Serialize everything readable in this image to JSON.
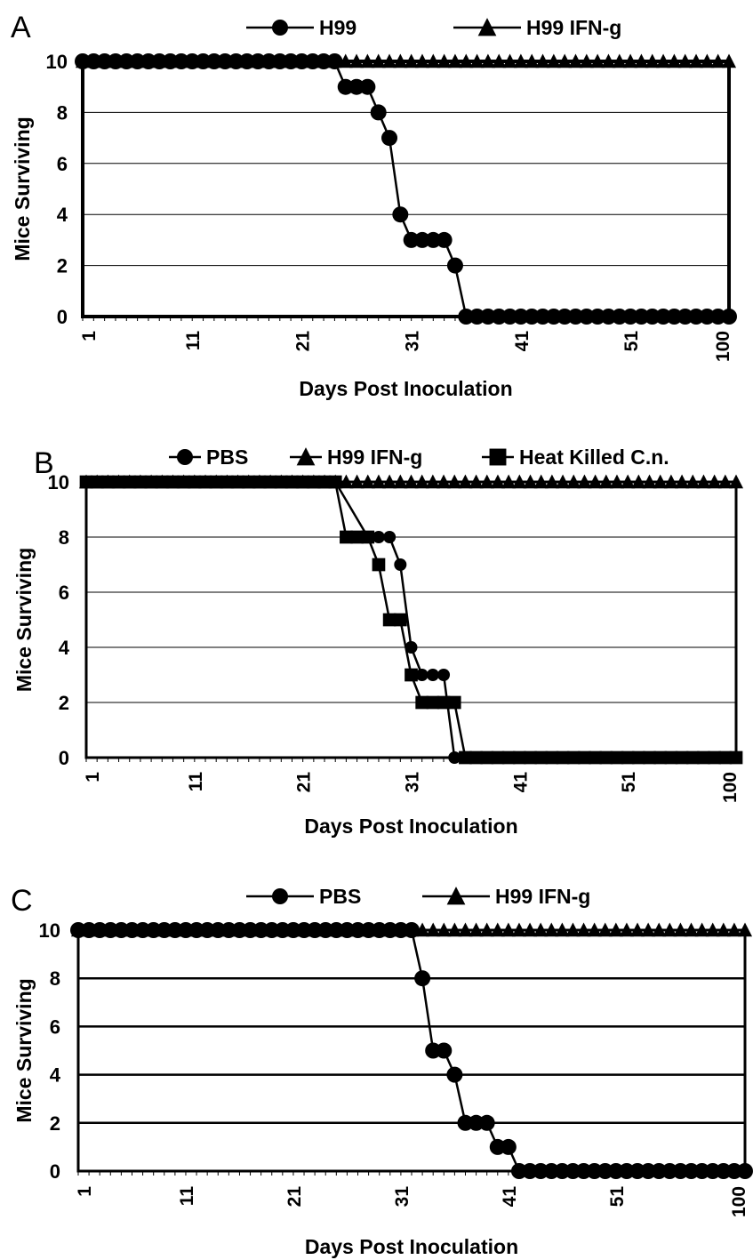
{
  "chart_data": [
    {
      "panel": "A",
      "type": "line",
      "xlabel": "Days Post Inoculation",
      "ylabel": "Mice Surviving",
      "x_tick_labels": [
        "1",
        "11",
        "21",
        "31",
        "41",
        "51",
        "100"
      ],
      "y_tick_labels": [
        "0",
        "2",
        "4",
        "6",
        "8",
        "10"
      ],
      "ylim": [
        0,
        10
      ],
      "grid": "horizontal",
      "legend_position": "top",
      "series": [
        {
          "name": "H99",
          "marker": "circle",
          "points": [
            [
              1,
              10
            ],
            [
              2,
              10
            ],
            [
              3,
              10
            ],
            [
              4,
              10
            ],
            [
              5,
              10
            ],
            [
              6,
              10
            ],
            [
              7,
              10
            ],
            [
              8,
              10
            ],
            [
              9,
              10
            ],
            [
              10,
              10
            ],
            [
              11,
              10
            ],
            [
              12,
              10
            ],
            [
              13,
              10
            ],
            [
              14,
              10
            ],
            [
              15,
              10
            ],
            [
              16,
              10
            ],
            [
              17,
              10
            ],
            [
              18,
              10
            ],
            [
              19,
              10
            ],
            [
              20,
              10
            ],
            [
              21,
              10
            ],
            [
              22,
              10
            ],
            [
              23,
              10
            ],
            [
              24,
              10
            ],
            [
              25,
              9
            ],
            [
              26,
              9
            ],
            [
              27,
              9
            ],
            [
              28,
              8
            ],
            [
              29,
              7
            ],
            [
              30,
              4
            ],
            [
              31,
              3
            ],
            [
              32,
              3
            ],
            [
              33,
              3
            ],
            [
              34,
              3
            ],
            [
              35,
              2
            ],
            [
              36,
              0
            ],
            [
              37,
              0
            ],
            [
              38,
              0
            ],
            [
              39,
              0
            ],
            [
              40,
              0
            ],
            [
              41,
              0
            ],
            [
              42,
              0
            ],
            [
              43,
              0
            ],
            [
              44,
              0
            ],
            [
              45,
              0
            ],
            [
              46,
              0
            ],
            [
              47,
              0
            ],
            [
              48,
              0
            ],
            [
              49,
              0
            ],
            [
              50,
              0
            ],
            [
              51,
              0
            ],
            [
              52,
              0
            ],
            [
              53,
              0
            ],
            [
              54,
              0
            ],
            [
              55,
              0
            ],
            [
              56,
              0
            ],
            [
              57,
              0
            ],
            [
              58,
              0
            ],
            [
              59,
              0
            ],
            [
              100,
              0
            ]
          ]
        },
        {
          "name": "H99 IFN-g",
          "marker": "triangle",
          "constant": 10
        }
      ]
    },
    {
      "panel": "B",
      "type": "line",
      "xlabel": "Days Post Inoculation",
      "ylabel": "Mice Surviving",
      "x_tick_labels": [
        "1",
        "11",
        "21",
        "31",
        "41",
        "51",
        "100"
      ],
      "y_tick_labels": [
        "0",
        "2",
        "4",
        "6",
        "8",
        "10"
      ],
      "ylim": [
        0,
        10
      ],
      "grid": "horizontal",
      "legend_position": "top",
      "series": [
        {
          "name": "PBS",
          "marker": "circle",
          "points": [
            [
              1,
              10
            ],
            [
              24,
              10
            ],
            [
              27,
              8
            ],
            [
              28,
              8
            ],
            [
              29,
              8
            ],
            [
              30,
              7
            ],
            [
              31,
              4
            ],
            [
              32,
              3
            ],
            [
              33,
              3
            ],
            [
              34,
              3
            ],
            [
              35,
              0
            ],
            [
              100,
              0
            ]
          ]
        },
        {
          "name": "H99 IFN-g",
          "marker": "triangle",
          "constant": 10
        },
        {
          "name": "Heat Killed C.n.",
          "marker": "square",
          "points": [
            [
              1,
              10
            ],
            [
              2,
              10
            ],
            [
              3,
              10
            ],
            [
              4,
              10
            ],
            [
              5,
              10
            ],
            [
              6,
              10
            ],
            [
              7,
              10
            ],
            [
              8,
              10
            ],
            [
              9,
              10
            ],
            [
              10,
              10
            ],
            [
              11,
              10
            ],
            [
              12,
              10
            ],
            [
              13,
              10
            ],
            [
              14,
              10
            ],
            [
              15,
              10
            ],
            [
              16,
              10
            ],
            [
              17,
              10
            ],
            [
              18,
              10
            ],
            [
              19,
              10
            ],
            [
              20,
              10
            ],
            [
              21,
              10
            ],
            [
              22,
              10
            ],
            [
              23,
              10
            ],
            [
              24,
              10
            ],
            [
              25,
              8
            ],
            [
              26,
              8
            ],
            [
              27,
              8
            ],
            [
              28,
              7
            ],
            [
              29,
              5
            ],
            [
              30,
              5
            ],
            [
              31,
              3
            ],
            [
              32,
              2
            ],
            [
              33,
              2
            ],
            [
              34,
              2
            ],
            [
              35,
              2
            ],
            [
              36,
              0
            ],
            [
              37,
              0
            ],
            [
              38,
              0
            ],
            [
              39,
              0
            ],
            [
              40,
              0
            ],
            [
              41,
              0
            ],
            [
              42,
              0
            ],
            [
              43,
              0
            ],
            [
              44,
              0
            ],
            [
              45,
              0
            ],
            [
              46,
              0
            ],
            [
              47,
              0
            ],
            [
              48,
              0
            ],
            [
              49,
              0
            ],
            [
              50,
              0
            ],
            [
              51,
              0
            ],
            [
              52,
              0
            ],
            [
              53,
              0
            ],
            [
              54,
              0
            ],
            [
              55,
              0
            ],
            [
              56,
              0
            ],
            [
              57,
              0
            ],
            [
              58,
              0
            ],
            [
              59,
              0
            ],
            [
              60,
              0
            ],
            [
              100,
              0
            ]
          ]
        }
      ]
    },
    {
      "panel": "C",
      "type": "line",
      "xlabel": "Days Post Inoculation",
      "ylabel": "Mice Surviving",
      "x_tick_labels": [
        "1",
        "11",
        "21",
        "31",
        "41",
        "51",
        "100"
      ],
      "y_tick_labels": [
        "0",
        "2",
        "4",
        "6",
        "8",
        "10"
      ],
      "ylim": [
        0,
        10
      ],
      "grid": "horizontal",
      "legend_position": "top",
      "series": [
        {
          "name": "PBS",
          "marker": "circle",
          "points": [
            [
              1,
              10
            ],
            [
              2,
              10
            ],
            [
              3,
              10
            ],
            [
              4,
              10
            ],
            [
              5,
              10
            ],
            [
              6,
              10
            ],
            [
              7,
              10
            ],
            [
              8,
              10
            ],
            [
              9,
              10
            ],
            [
              10,
              10
            ],
            [
              11,
              10
            ],
            [
              12,
              10
            ],
            [
              13,
              10
            ],
            [
              14,
              10
            ],
            [
              15,
              10
            ],
            [
              16,
              10
            ],
            [
              17,
              10
            ],
            [
              18,
              10
            ],
            [
              19,
              10
            ],
            [
              20,
              10
            ],
            [
              21,
              10
            ],
            [
              22,
              10
            ],
            [
              23,
              10
            ],
            [
              24,
              10
            ],
            [
              25,
              10
            ],
            [
              26,
              10
            ],
            [
              27,
              10
            ],
            [
              28,
              10
            ],
            [
              29,
              10
            ],
            [
              30,
              10
            ],
            [
              31,
              10
            ],
            [
              32,
              10
            ],
            [
              33,
              8
            ],
            [
              34,
              5
            ],
            [
              35,
              5
            ],
            [
              36,
              4
            ],
            [
              37,
              2
            ],
            [
              38,
              2
            ],
            [
              39,
              2
            ],
            [
              40,
              1
            ],
            [
              41,
              1
            ],
            [
              42,
              0
            ],
            [
              43,
              0
            ],
            [
              44,
              0
            ],
            [
              45,
              0
            ],
            [
              46,
              0
            ],
            [
              47,
              0
            ],
            [
              48,
              0
            ],
            [
              49,
              0
            ],
            [
              50,
              0
            ],
            [
              51,
              0
            ],
            [
              52,
              0
            ],
            [
              53,
              0
            ],
            [
              54,
              0
            ],
            [
              55,
              0
            ],
            [
              56,
              0
            ],
            [
              57,
              0
            ],
            [
              58,
              0
            ],
            [
              59,
              0
            ],
            [
              60,
              0
            ],
            [
              61,
              0
            ],
            [
              62,
              0
            ],
            [
              100,
              0
            ]
          ]
        },
        {
          "name": "H99 IFN-g",
          "marker": "triangle",
          "constant": 10
        }
      ]
    }
  ]
}
